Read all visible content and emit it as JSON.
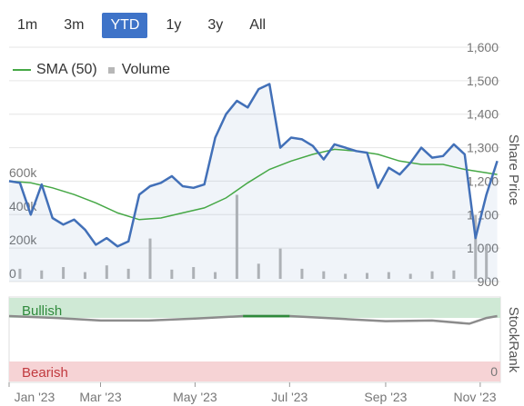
{
  "range_buttons": [
    {
      "label": "1m",
      "active": false
    },
    {
      "label": "3m",
      "active": false
    },
    {
      "label": "YTD",
      "active": true
    },
    {
      "label": "1y",
      "active": false
    },
    {
      "label": "3y",
      "active": false
    },
    {
      "label": "All",
      "active": false
    }
  ],
  "legend": {
    "sma_label": "SMA (50)",
    "volume_label": "Volume"
  },
  "colors": {
    "price": "#4270b8",
    "sma": "#46a846",
    "volume": "#b7b7b7",
    "rank": "#8c8c8c",
    "bullish_bg": "#cfe9d5",
    "bearish_bg": "#f6d3d5",
    "accent": "#3e73c8"
  },
  "chart_data": [
    {
      "type": "line",
      "y_title": "Share Price",
      "price_ticks": [
        900,
        1000,
        1100,
        1200,
        1300,
        1400,
        1500,
        1600
      ],
      "price_tick_labels": [
        "900",
        "1,000",
        "1,100",
        "1,200",
        "1,300",
        "1,400",
        "1,500",
        "1,600"
      ],
      "ylim": [
        900,
        1600
      ],
      "volume_ticks": [
        "0",
        "200k",
        "400k",
        "600k"
      ],
      "volume_tick_values": [
        0,
        200000,
        400000,
        600000
      ],
      "x_ticks": [
        "Jan '23",
        "Mar '23",
        "May '23",
        "Jul '23",
        "Sep '23",
        "Nov '23"
      ],
      "x_tick_dates": [
        "2023-01-01",
        "2023-03-01",
        "2023-05-01",
        "2023-07-01",
        "2023-09-01",
        "2023-11-01"
      ],
      "series": [
        {
          "name": "Price",
          "x": [
            "2023-01-01",
            "2023-01-08",
            "2023-01-15",
            "2023-01-22",
            "2023-01-29",
            "2023-02-05",
            "2023-02-12",
            "2023-02-19",
            "2023-02-26",
            "2023-03-05",
            "2023-03-12",
            "2023-03-19",
            "2023-03-26",
            "2023-04-02",
            "2023-04-09",
            "2023-04-16",
            "2023-04-23",
            "2023-04-30",
            "2023-05-07",
            "2023-05-14",
            "2023-05-21",
            "2023-05-28",
            "2023-06-04",
            "2023-06-11",
            "2023-06-18",
            "2023-06-25",
            "2023-07-02",
            "2023-07-09",
            "2023-07-16",
            "2023-07-23",
            "2023-07-30",
            "2023-08-06",
            "2023-08-13",
            "2023-08-20",
            "2023-08-27",
            "2023-09-03",
            "2023-09-10",
            "2023-09-17",
            "2023-09-24",
            "2023-10-01",
            "2023-10-08",
            "2023-10-15",
            "2023-10-22",
            "2023-10-29",
            "2023-11-05",
            "2023-11-12"
          ],
          "values": [
            1200,
            1195,
            1100,
            1190,
            1090,
            1070,
            1085,
            1055,
            1010,
            1030,
            1005,
            1020,
            1160,
            1185,
            1195,
            1215,
            1185,
            1180,
            1190,
            1330,
            1400,
            1440,
            1420,
            1475,
            1490,
            1300,
            1330,
            1325,
            1305,
            1265,
            1310,
            1300,
            1290,
            1285,
            1180,
            1240,
            1220,
            1255,
            1300,
            1270,
            1275,
            1310,
            1280,
            1030,
            1160,
            1260
          ],
          "color": "#4270b8"
        },
        {
          "name": "SMA (50)",
          "x": [
            "2023-01-01",
            "2023-01-15",
            "2023-01-29",
            "2023-02-12",
            "2023-02-26",
            "2023-03-12",
            "2023-03-26",
            "2023-04-09",
            "2023-04-23",
            "2023-05-07",
            "2023-05-21",
            "2023-06-04",
            "2023-06-18",
            "2023-07-02",
            "2023-07-16",
            "2023-07-30",
            "2023-08-13",
            "2023-08-27",
            "2023-09-10",
            "2023-09-24",
            "2023-10-08",
            "2023-10-22",
            "2023-11-05",
            "2023-11-12"
          ],
          "values": [
            1200,
            1195,
            1180,
            1160,
            1135,
            1105,
            1085,
            1090,
            1105,
            1120,
            1150,
            1195,
            1235,
            1260,
            1280,
            1295,
            1290,
            1280,
            1260,
            1250,
            1250,
            1235,
            1225,
            1220
          ],
          "color": "#46a846"
        }
      ],
      "volume": {
        "name": "Volume",
        "x": [
          "2023-01-08",
          "2023-01-22",
          "2023-02-05",
          "2023-02-19",
          "2023-03-05",
          "2023-03-19",
          "2023-04-02",
          "2023-04-16",
          "2023-04-30",
          "2023-05-14",
          "2023-05-28",
          "2023-06-11",
          "2023-06-25",
          "2023-07-09",
          "2023-07-23",
          "2023-08-06",
          "2023-08-20",
          "2023-09-03",
          "2023-09-17",
          "2023-10-01",
          "2023-10-15",
          "2023-10-29",
          "2023-11-05"
        ],
        "values": [
          60000,
          50000,
          70000,
          40000,
          80000,
          60000,
          240000,
          55000,
          70000,
          40000,
          500000,
          90000,
          180000,
          60000,
          45000,
          30000,
          35000,
          40000,
          30000,
          45000,
          50000,
          380000,
          200000
        ]
      }
    },
    {
      "type": "area",
      "y_title": "StockRank",
      "band_labels": {
        "top": "Bullish",
        "bottom": "Bearish"
      },
      "tick_bottom": "0",
      "x": [
        "2023-01-01",
        "2023-02-01",
        "2023-03-01",
        "2023-04-01",
        "2023-05-01",
        "2023-06-01",
        "2023-07-01",
        "2023-08-01",
        "2023-09-01",
        "2023-10-01",
        "2023-10-25",
        "2023-11-05",
        "2023-11-12"
      ],
      "values": [
        100,
        97,
        93,
        93,
        96,
        100,
        100,
        96,
        92,
        93,
        88,
        97,
        100
      ]
    }
  ]
}
